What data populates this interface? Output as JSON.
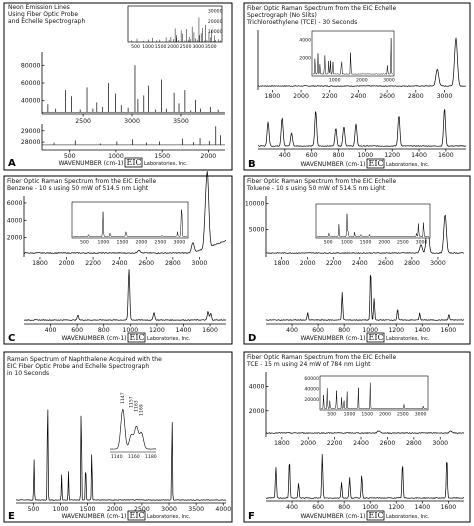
{
  "figure": {
    "panels": [
      {
        "label": "A",
        "title_lines": [
          "Neon Emission Lines",
          "Using Fiber Optic Probe",
          "and Echelle Spectrograph"
        ],
        "xlabel": "WAVENUMBER (cm-1)",
        "logo_main": "EIC",
        "logo_sub": "Laboratories, Inc.",
        "bottom_axis": {
          "ticks": [
            500,
            1000,
            1500,
            2000
          ],
          "range": [
            200,
            2180
          ]
        },
        "bands": [
          {
            "name": "upper",
            "range": [
              2080,
              3950
            ],
            "ticks": [
              2500,
              3000,
              3500
            ],
            "yticks": [
              40000,
              60000,
              80000
            ],
            "yrange": [
              25000,
              95000
            ],
            "box": "upper"
          },
          {
            "name": "lower",
            "range": [
              200,
              2180
            ],
            "ticks": [],
            "yticks": [
              28000,
              29000
            ],
            "yrange": [
              27300,
              29600
            ],
            "box": "lower"
          }
        ],
        "inset": {
          "xticks": [
            500,
            1000,
            1500,
            2000,
            2500,
            3000,
            3500
          ],
          "yticks": [
            10000,
            20000,
            30000
          ],
          "xrange": [
            200,
            3950
          ],
          "yrange": [
            0,
            35000
          ]
        }
      },
      {
        "label": "B",
        "title_lines": [
          "Fiber Optic Raman Spectrum from the EIC Echelle",
          "Spectrograph (No Slits)",
          "Trichloroethylene (TCE) - 30 Seconds"
        ],
        "xlabel": "WAVENUMBER (cm-1)",
        "logo_main": "EIC",
        "logo_sub": "Laboratories, Inc.",
        "bottom_axis": {
          "ticks": [
            400,
            600,
            800,
            1000,
            1200,
            1400,
            1600
          ],
          "range": [
            200,
            1750
          ]
        },
        "top_axis": {
          "ticks": [
            1800,
            2000,
            2200,
            2400,
            2600,
            2800,
            3000
          ],
          "range": [
            1700,
            3150
          ]
        },
        "inset": {
          "xticks": [
            1000,
            2000,
            3000
          ],
          "yticks": [
            2000,
            4000
          ],
          "xrange": [
            200,
            3150
          ],
          "yrange": [
            0,
            5000
          ]
        }
      },
      {
        "label": "C",
        "title_lines": [
          "Fiber Optic Raman Spectrum from the EIC Echelle",
          "Benzene - 10 s using 50 mW of 514.5 nm Light"
        ],
        "xlabel": "WAVENUMBER (cm-1)",
        "logo_main": "EIC",
        "logo_sub": "Laboratories, Inc.",
        "bottom_axis": {
          "ticks": [
            400,
            600,
            800,
            1000,
            1200,
            1400,
            1600
          ],
          "range": [
            200,
            1720
          ]
        },
        "top_axis": {
          "ticks": [
            1800,
            2000,
            2200,
            2400,
            2600,
            2800,
            3000
          ],
          "range": [
            1680,
            3200
          ]
        },
        "left_yticks": [
          2000,
          4000,
          6000
        ],
        "left_yrange": [
          0,
          6800
        ],
        "inset": {
          "xticks": [
            500,
            1000,
            1500,
            2000,
            2500,
            3000
          ],
          "yticks": [],
          "xrange": [
            200,
            3200
          ],
          "yrange": [
            0,
            7000
          ]
        }
      },
      {
        "label": "D",
        "title_lines": [
          "Fiber Optic Raman Spectrum from the EIC Echelle",
          "Toluene - 10 s using 50 mW of 514.5 nm Light"
        ],
        "xlabel": "WAVENUMBER (cm-1)",
        "logo_main": "EIC",
        "logo_sub": "Laboratories, Inc.",
        "bottom_axis": {
          "ticks": [
            400,
            600,
            800,
            1000,
            1200,
            1400,
            1600
          ],
          "range": [
            200,
            1720
          ]
        },
        "top_axis": {
          "ticks": [
            1800,
            2000,
            2200,
            2400,
            2600,
            2800,
            3000
          ],
          "range": [
            1680,
            3200
          ]
        },
        "left_yticks": [
          5000,
          10000
        ],
        "left_yrange": [
          0,
          11500
        ],
        "inset": {
          "xticks": [
            500,
            1000,
            1500,
            2000,
            2500,
            3000
          ],
          "yticks": [],
          "xrange": [
            200,
            3200
          ],
          "yrange": [
            0,
            12000
          ]
        }
      },
      {
        "label": "E",
        "title_lines": [
          "Raman Spectrum of Naphthalene Acquired with the",
          "EIC Fiber Optic Probe and Echelle Spectrograph",
          "in 10 Seconds"
        ],
        "xlabel": "WAVENUMBER (cm-1)",
        "logo_main": "EIC",
        "logo_sub": "Laboratories, Inc.",
        "bottom_axis": {
          "ticks": [
            500,
            1000,
            1500,
            2000,
            2500,
            3000,
            3500,
            4000
          ],
          "range": [
            180,
            4050
          ]
        },
        "inset": {
          "xticks": [
            1140,
            1160,
            1180
          ],
          "peak_labels": [
            "1147",
            "1157",
            "1163",
            "1169"
          ],
          "xrange": [
            1132,
            1186
          ]
        }
      },
      {
        "label": "F",
        "title_lines": [
          "Fiber Optic Raman Spectrum from the EIC Echelle",
          "TCE - 15 m using 24 mW of 784 nm Light"
        ],
        "xlabel": "WAVENUMBER (cm-1)",
        "logo_main": "EIC",
        "logo_sub": "Laboratories, Inc.",
        "bottom_axis": {
          "ticks": [
            400,
            600,
            800,
            1000,
            1200,
            1400,
            1600
          ],
          "range": [
            200,
            1720
          ]
        },
        "top_axis": {
          "ticks": [
            1800,
            2000,
            2200,
            2400,
            2600,
            2800,
            3000
          ],
          "range": [
            1680,
            3180
          ]
        },
        "left_yticks": [
          2000,
          4000
        ],
        "left_yrange": [
          0,
          5200
        ],
        "inset": {
          "xticks": [
            500,
            1000,
            1500,
            2000,
            2500,
            3000
          ],
          "yticks": [
            20000,
            40000,
            60000
          ],
          "xrange": [
            200,
            3180
          ],
          "yrange": [
            0,
            65000
          ]
        }
      }
    ]
  },
  "chart_data": [
    {
      "type": "line",
      "panel": "A",
      "title": "Neon Emission Lines Using Fiber Optic Probe and Echelle Spectrograph",
      "xlabel": "WAVENUMBER (cm-1)",
      "ylabel": "",
      "series": [
        {
          "band": "upper",
          "xlim": [
            2080,
            3950
          ],
          "ylim": [
            25000,
            95000
          ],
          "baseline": 27000,
          "peaks": [
            [
              2140,
              36000
            ],
            [
              2220,
              31000
            ],
            [
              2320,
              52000
            ],
            [
              2380,
              45000
            ],
            [
              2470,
              30000
            ],
            [
              2540,
              55000
            ],
            [
              2600,
              31000
            ],
            [
              2640,
              38000
            ],
            [
              2700,
              33000
            ],
            [
              2760,
              60000
            ],
            [
              2830,
              48000
            ],
            [
              2890,
              35000
            ],
            [
              2960,
              32000
            ],
            [
              3030,
              80000
            ],
            [
              3060,
              42000
            ],
            [
              3120,
              46000
            ],
            [
              3170,
              57000
            ],
            [
              3240,
              30000
            ],
            [
              3300,
              64000
            ],
            [
              3350,
              31000
            ],
            [
              3430,
              49000
            ],
            [
              3480,
              37000
            ],
            [
              3540,
              52000
            ],
            [
              3600,
              29000
            ],
            [
              3650,
              41000
            ],
            [
              3700,
              31000
            ],
            [
              3800,
              33000
            ],
            [
              3880,
              30000
            ]
          ]
        },
        {
          "band": "lower",
          "xlim": [
            200,
            2180
          ],
          "ylim": [
            27300,
            29600
          ],
          "baseline": 27750,
          "peaks": [
            [
              330,
              27950
            ],
            [
              560,
              28150
            ],
            [
              830,
              27880
            ],
            [
              1010,
              28050
            ],
            [
              1180,
              28250
            ],
            [
              1330,
              27950
            ],
            [
              1470,
              28050
            ],
            [
              1720,
              28300
            ],
            [
              1840,
              28000
            ],
            [
              1910,
              28350
            ],
            [
              2010,
              28100
            ],
            [
              2080,
              29400
            ],
            [
              2130,
              28600
            ]
          ]
        }
      ]
    },
    {
      "type": "line",
      "panel": "B",
      "title": "Fiber Optic Raman Spectrum from the EIC Echelle Spectrograph (No Slits) Trichloroethylene (TCE) - 30 Seconds",
      "xlabel": "WAVENUMBER (cm-1)",
      "ylabel": "",
      "peaks": [
        [
          275,
          0.55
        ],
        [
          380,
          0.65
        ],
        [
          450,
          0.3
        ],
        [
          630,
          0.8
        ],
        [
          780,
          0.4
        ],
        [
          840,
          0.45
        ],
        [
          930,
          0.5
        ],
        [
          1250,
          0.7
        ],
        [
          1590,
          0.85
        ],
        [
          2950,
          0.35
        ],
        [
          3080,
          1.0
        ]
      ]
    },
    {
      "type": "line",
      "panel": "C",
      "title": "Fiber Optic Raman Spectrum from the EIC Echelle Benzene - 10 s using 50 mW of 514.5 nm Light",
      "xlabel": "WAVENUMBER (cm-1)",
      "ylabel": "",
      "ylim": [
        0,
        6800
      ],
      "peaks": [
        [
          606,
          500
        ],
        [
          990,
          5200
        ],
        [
          1178,
          800
        ],
        [
          1585,
          900
        ],
        [
          1605,
          700
        ],
        [
          2545,
          300
        ],
        [
          2950,
          1000
        ],
        [
          3047,
          3300
        ],
        [
          3062,
          5900
        ]
      ]
    },
    {
      "type": "line",
      "panel": "D",
      "title": "Fiber Optic Raman Spectrum from the EIC Echelle Toluene - 10 s using 50 mW of 514.5 nm Light",
      "xlabel": "WAVENUMBER (cm-1)",
      "ylabel": "",
      "ylim": [
        0,
        11500
      ],
      "peaks": [
        [
          520,
          1200
        ],
        [
          785,
          4500
        ],
        [
          1003,
          8300
        ],
        [
          1030,
          3500
        ],
        [
          1210,
          1800
        ],
        [
          1380,
          1100
        ],
        [
          1604,
          900
        ],
        [
          2870,
          1500
        ],
        [
          2920,
          5800
        ],
        [
          3055,
          7000
        ]
      ]
    },
    {
      "type": "line",
      "panel": "E",
      "title": "Raman Spectrum of Naphthalene Acquired with the EIC Fiber Optic Probe and Echelle Spectrograph in 10 Seconds",
      "xlabel": "WAVENUMBER (cm-1)",
      "ylabel": "",
      "peaks": [
        [
          513,
          0.35
        ],
        [
          763,
          1.0
        ],
        [
          1021,
          0.22
        ],
        [
          1147,
          0.25
        ],
        [
          1382,
          0.9
        ],
        [
          1464,
          0.35
        ],
        [
          1577,
          0.45
        ],
        [
          3056,
          0.78
        ]
      ],
      "inset_peaks": [
        [
          1147,
          1.0
        ],
        [
          1157,
          0.35
        ],
        [
          1163,
          0.55
        ],
        [
          1169,
          0.4
        ]
      ]
    },
    {
      "type": "line",
      "panel": "F",
      "title": "Fiber Optic Raman Spectrum from the EIC Echelle TCE - 15 m using 24 mW of 784 nm Light",
      "xlabel": "WAVENUMBER (cm-1)",
      "ylabel": "",
      "ylim": [
        0,
        5200
      ],
      "peaks": [
        [
          276,
          3200
        ],
        [
          380,
          4000
        ],
        [
          450,
          1500
        ],
        [
          632,
          4500
        ],
        [
          780,
          1600
        ],
        [
          842,
          2100
        ],
        [
          935,
          2400
        ],
        [
          1248,
          3600
        ],
        [
          1588,
          4200
        ],
        [
          2535,
          700
        ],
        [
          3080,
          500
        ]
      ]
    }
  ]
}
